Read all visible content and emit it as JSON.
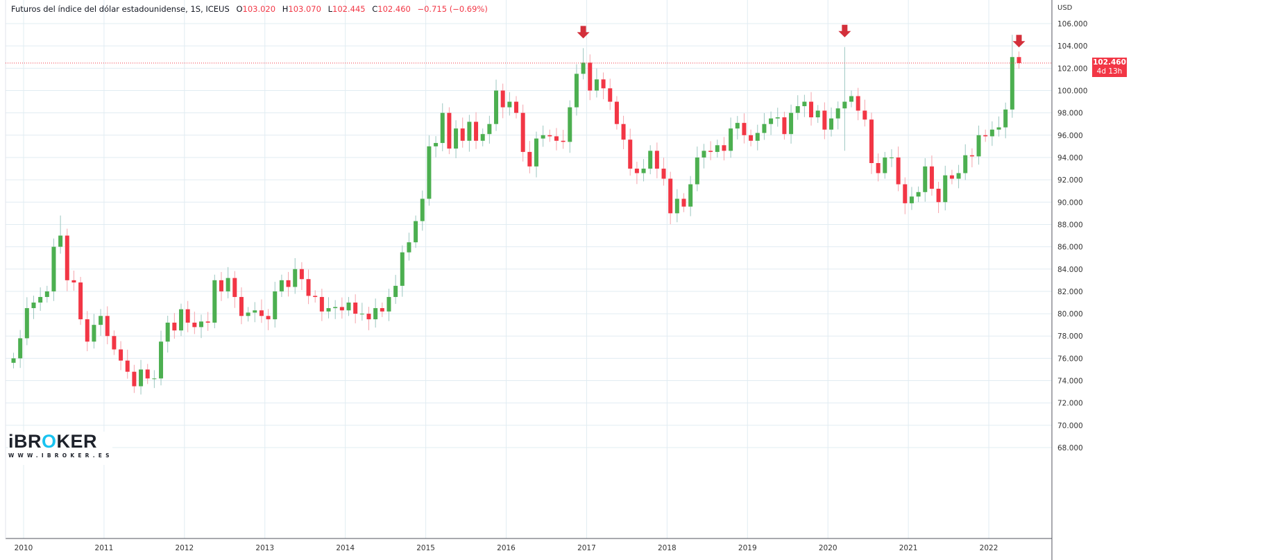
{
  "header": {
    "title": "Futuros del índice del dólar estadounidense, 1S, ICEUS",
    "open_label": "O",
    "open": "103.020",
    "high_label": "H",
    "high": "103.070",
    "low_label": "L",
    "low": "102.445",
    "close_label": "C",
    "close": "102.460",
    "change": "−0.715 (−0.69%)"
  },
  "currency": "USD",
  "last_price": {
    "value": "102.460",
    "countdown": "4d 13h"
  },
  "logo": {
    "brand": "iBROKER",
    "url": "WWW.IBROKER.ES"
  },
  "colors": {
    "up": "#4caf50",
    "down": "#f23645",
    "grid": "#e1ecf2",
    "arrow": "#d32f3a"
  },
  "chart_data": {
    "type": "candlestick",
    "title": "Futuros del índice del dólar estadounidense, 1S, ICEUS",
    "interval": "monthly approximation of weekly candles",
    "start_month": "2009-11",
    "closes": [
      76.0,
      77.8,
      80.5,
      81.0,
      81.5,
      82.0,
      86.0,
      87.0,
      83.0,
      82.8,
      79.5,
      77.5,
      79.0,
      79.8,
      78.0,
      76.8,
      75.8,
      74.8,
      73.5,
      75.0,
      74.2,
      74.2,
      77.5,
      79.2,
      78.5,
      80.4,
      79.2,
      78.8,
      79.3,
      79.2,
      83.0,
      82.0,
      83.2,
      81.5,
      79.8,
      80.1,
      80.3,
      79.8,
      79.5,
      82.0,
      83.0,
      82.4,
      84.0,
      83.1,
      81.6,
      81.5,
      80.2,
      80.5,
      80.6,
      80.3,
      81.0,
      80.0,
      80.0,
      79.5,
      80.5,
      80.2,
      81.5,
      82.5,
      85.5,
      86.4,
      88.3,
      90.3,
      95.0,
      95.3,
      98.0,
      94.8,
      96.6,
      95.5,
      97.2,
      95.5,
      96.1,
      97.0,
      100.0,
      98.5,
      99.0,
      98.0,
      94.5,
      93.2,
      95.7,
      96.0,
      95.9,
      95.5,
      95.4,
      98.5,
      101.5,
      102.5,
      100.0,
      101.0,
      100.2,
      99.0,
      97.0,
      95.6,
      93.0,
      92.6,
      93.0,
      94.6,
      93.0,
      92.1,
      89.0,
      90.3,
      89.6,
      91.6,
      94.0,
      94.6,
      94.5,
      95.1,
      94.6,
      96.6,
      97.1,
      96.0,
      95.5,
      96.2,
      97.0,
      97.5,
      97.6,
      96.1,
      98.0,
      98.6,
      99.0,
      97.6,
      98.2,
      96.5,
      97.5,
      98.4,
      99.0,
      99.5,
      98.2,
      97.4,
      93.5,
      92.6,
      94.0,
      94.0,
      91.6,
      89.9,
      90.5,
      90.9,
      93.2,
      91.2,
      90.0,
      92.4,
      92.1,
      92.6,
      94.2,
      94.1,
      96.0,
      95.9,
      96.5,
      96.7,
      98.3,
      103.0,
      102.46
    ],
    "extremes": [
      {
        "month": "2010-06",
        "high": 88.8
      },
      {
        "month": "2011-05",
        "low": 72.9
      },
      {
        "month": "2016-12",
        "high": 103.8
      },
      {
        "month": "2018-02",
        "low": 88.2
      },
      {
        "month": "2020-03",
        "high": 103.9,
        "low": 94.6
      },
      {
        "month": "2021-01",
        "low": 89.3
      },
      {
        "month": "2022-04",
        "high": 105.0
      }
    ],
    "annotations": [
      {
        "type": "arrow-down",
        "month": "2016-12"
      },
      {
        "type": "arrow-down",
        "month": "2020-03"
      },
      {
        "type": "arrow-down",
        "month": "2022-05"
      }
    ],
    "x_ticks": [
      "2010",
      "2011",
      "2012",
      "2013",
      "2014",
      "2015",
      "2016",
      "2017",
      "2018",
      "2019",
      "2020",
      "2021",
      "2022"
    ],
    "y_ticks": [
      "68.000",
      "70.000",
      "72.000",
      "74.000",
      "76.000",
      "78.000",
      "80.000",
      "82.000",
      "84.000",
      "86.000",
      "88.000",
      "90.000",
      "92.000",
      "94.000",
      "96.000",
      "98.000",
      "100.000",
      "102.000",
      "104.000",
      "106.000"
    ],
    "ylim": [
      67,
      107
    ],
    "ylabel": "USD",
    "grid": true
  }
}
